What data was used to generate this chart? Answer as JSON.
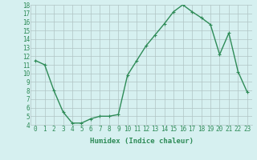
{
  "x": [
    0,
    1,
    2,
    3,
    4,
    5,
    6,
    7,
    8,
    9,
    10,
    11,
    12,
    13,
    14,
    15,
    16,
    17,
    18,
    19,
    20,
    21,
    22,
    23
  ],
  "y": [
    11.5,
    11.0,
    8.0,
    5.5,
    4.2,
    4.2,
    4.7,
    5.0,
    5.0,
    5.2,
    9.8,
    11.5,
    13.2,
    14.5,
    15.8,
    17.2,
    18.0,
    17.2,
    16.5,
    15.7,
    12.2,
    14.7,
    10.2,
    7.8
  ],
  "line_color": "#2e8b57",
  "marker": "+",
  "marker_color": "#2e8b57",
  "background_color": "#d6f0f0",
  "grid_color": "#b0c4c4",
  "xlabel": "Humidex (Indice chaleur)",
  "xlim": [
    -0.5,
    23.5
  ],
  "ylim": [
    4,
    18
  ],
  "yticks": [
    4,
    5,
    6,
    7,
    8,
    9,
    10,
    11,
    12,
    13,
    14,
    15,
    16,
    17,
    18
  ],
  "xticks": [
    0,
    1,
    2,
    3,
    4,
    5,
    6,
    7,
    8,
    9,
    10,
    11,
    12,
    13,
    14,
    15,
    16,
    17,
    18,
    19,
    20,
    21,
    22,
    23
  ],
  "tick_fontsize": 5.5,
  "xlabel_fontsize": 6.5,
  "linewidth": 1.0,
  "markersize": 3.5
}
